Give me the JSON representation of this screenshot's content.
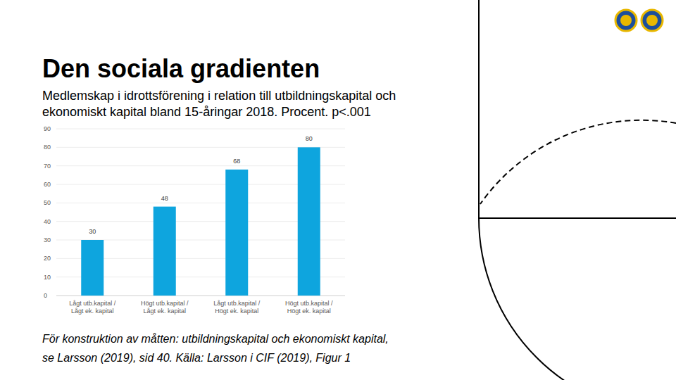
{
  "chart_data": {
    "type": "bar",
    "title": "Den sociala gradienten",
    "subtitle": [
      "Medlemskap i idrottsförening i relation till utbildningskapital och",
      "ekonomiskt kapital bland 15-åringar 2018. Procent. p<.001"
    ],
    "categories": [
      "Lågt utb.kapital / Lågt ek. kapital",
      "Högt utb.kapital / Lågt ek. kapital",
      "Lågt utb.kapital / Högt ek. kapital",
      "Högt utb.kapital / Högt ek. kapital"
    ],
    "values": [
      30,
      48,
      68,
      80
    ],
    "color": "#0ea5de",
    "ylim": [
      0,
      90
    ],
    "yticks": [
      0,
      10,
      20,
      30,
      40,
      50,
      60,
      70,
      80,
      90
    ],
    "grid": true,
    "data_labels": true,
    "annotations": [
      "För konstruktion av måtten: utbildningskapital och ekonomiskt kapital,",
      "se Larsson (2019), sid 40. Källa: Larsson i CIF (2019), Figur 1"
    ]
  }
}
